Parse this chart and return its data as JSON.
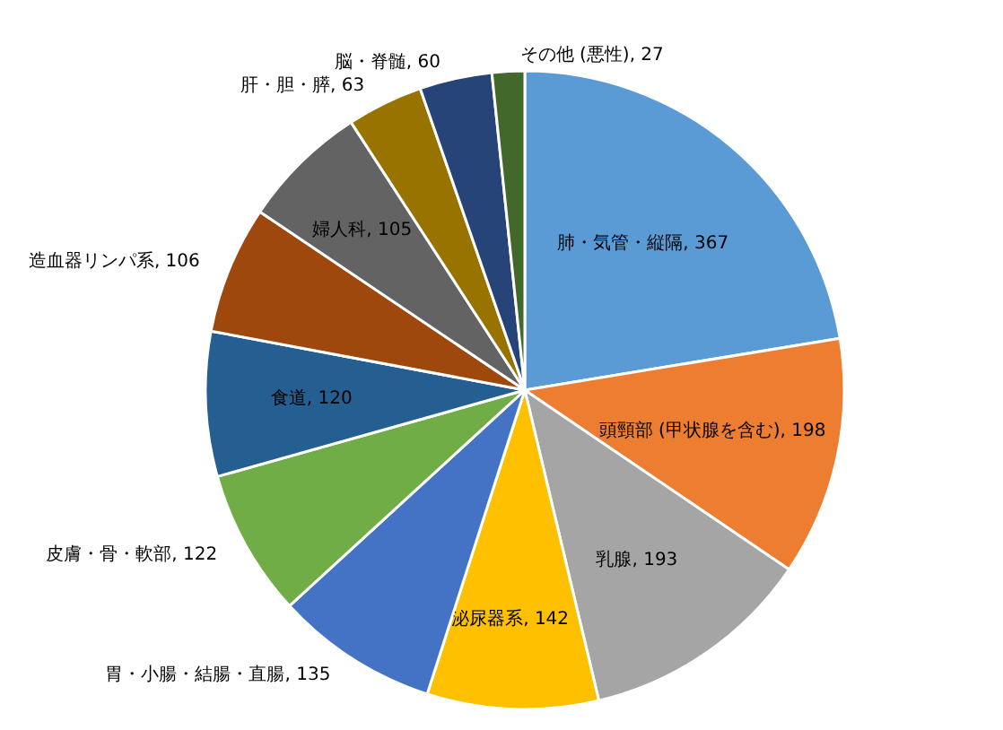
{
  "chart_data": {
    "type": "pie",
    "categories": [
      "肺・気管・縦隔",
      "頭頸部 (甲状腺を含む)",
      "乳腺",
      "泌尿器系",
      "胃・小腸・結腸・直腸",
      "皮膚・骨・軟部",
      "食道",
      "造血器リンパ系",
      "婦人科",
      "肝・胆・膵",
      "脳・脊髄",
      "その他 (悪性)"
    ],
    "values": [
      367,
      198,
      193,
      142,
      135,
      122,
      120,
      106,
      105,
      63,
      60,
      27
    ],
    "colors": [
      "#5b9bd5",
      "#ed7d31",
      "#a5a5a5",
      "#ffc000",
      "#4472c4",
      "#70ad47",
      "#255e91",
      "#9e480e",
      "#636363",
      "#997300",
      "#264478",
      "#43682b"
    ],
    "value_labels": [
      ", 367",
      ", 198",
      ", 193",
      ", 142",
      ", 135",
      ", 122",
      ", 120",
      ", 106",
      ", 105",
      ", 63",
      ", 60",
      ", 27"
    ]
  }
}
